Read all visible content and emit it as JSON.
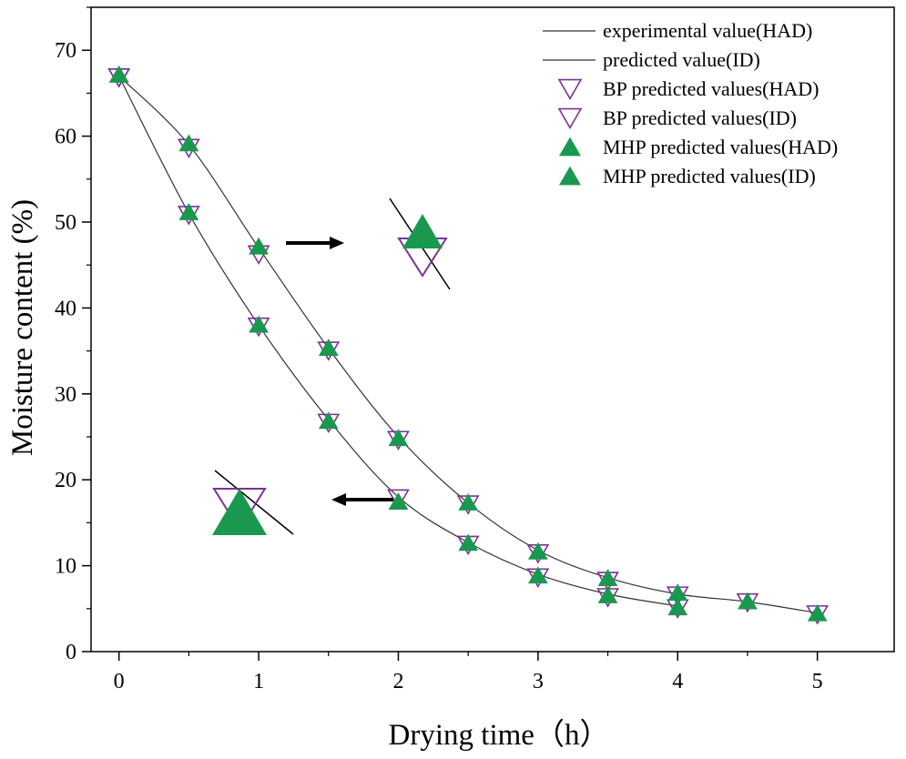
{
  "chart_data": {
    "type": "line+scatter",
    "title": "",
    "xlabel": "Drying time（h）",
    "ylabel": "Moisture content (%)",
    "xlim": [
      -0.2,
      5.55
    ],
    "ylim": [
      0,
      75
    ],
    "xticks": [
      0,
      1,
      2,
      3,
      4,
      5
    ],
    "xtick_labels": [
      "0",
      "1",
      "2",
      "3",
      "4",
      "5"
    ],
    "yticks": [
      0,
      10,
      20,
      30,
      40,
      50,
      60,
      70
    ],
    "ytick_labels": [
      "0",
      "10",
      "20",
      "30",
      "40",
      "50",
      "60",
      "70"
    ],
    "grid": false,
    "legend_position": "top-right",
    "legend": [
      "experimental value(HAD)",
      "predicted value(ID)",
      "BP predicted values(HAD)",
      "BP predicted values(ID)",
      "MHP predicted values(HAD)",
      "MHP predicted values(ID)"
    ],
    "x": [
      0,
      0.5,
      1,
      1.5,
      2,
      2.5,
      3,
      3.5,
      4,
      4.5,
      5
    ],
    "series": [
      {
        "name": "experimental value(HAD)",
        "kind": "line",
        "values": [
          67,
          59,
          47,
          35.3,
          25,
          17.3,
          11.8,
          8.6,
          6.7,
          5.8,
          4.5
        ]
      },
      {
        "name": "predicted value(ID)",
        "kind": "line",
        "values": [
          67,
          51,
          38,
          27,
          18,
          12.7,
          9,
          6.7,
          5.3,
          null,
          null
        ]
      },
      {
        "name": "BP predicted values(HAD)",
        "kind": "scatter",
        "marker": "open-down-triangle",
        "color": "#7b3294",
        "values": [
          66.8,
          58.6,
          46.2,
          35,
          24.6,
          17.1,
          11.4,
          8.2,
          6.5,
          5.7,
          4.3
        ]
      },
      {
        "name": "BP predicted values(ID)",
        "kind": "scatter",
        "marker": "open-down-triangle",
        "color": "#7b3294",
        "values": [
          66.8,
          50.8,
          37.8,
          26.6,
          17.8,
          12.4,
          8.6,
          6.3,
          5,
          null,
          null
        ]
      },
      {
        "name": "MHP predicted values(HAD)",
        "kind": "scatter",
        "marker": "filled-up-triangle",
        "color": "#1a9850",
        "values": [
          67.2,
          59.2,
          47.2,
          35.4,
          24.9,
          17.4,
          11.7,
          8.6,
          6.9,
          5.9,
          4.5
        ]
      },
      {
        "name": "MHP predicted values(ID)",
        "kind": "scatter",
        "marker": "filled-up-triangle",
        "color": "#1a9850",
        "values": [
          67.2,
          51.2,
          38.1,
          26.9,
          17.5,
          12.7,
          8.9,
          6.6,
          5.2,
          null,
          null
        ]
      }
    ],
    "insets": [
      {
        "name": "zoom-HAD-1h",
        "source_x": 1,
        "arrow_direction": "right"
      },
      {
        "name": "zoom-ID-2h",
        "source_x": 2,
        "arrow_direction": "left"
      }
    ]
  },
  "colors": {
    "bp": "#7b3294",
    "mhp": "#1a9850",
    "line": "#333333",
    "axis": "#000000"
  }
}
